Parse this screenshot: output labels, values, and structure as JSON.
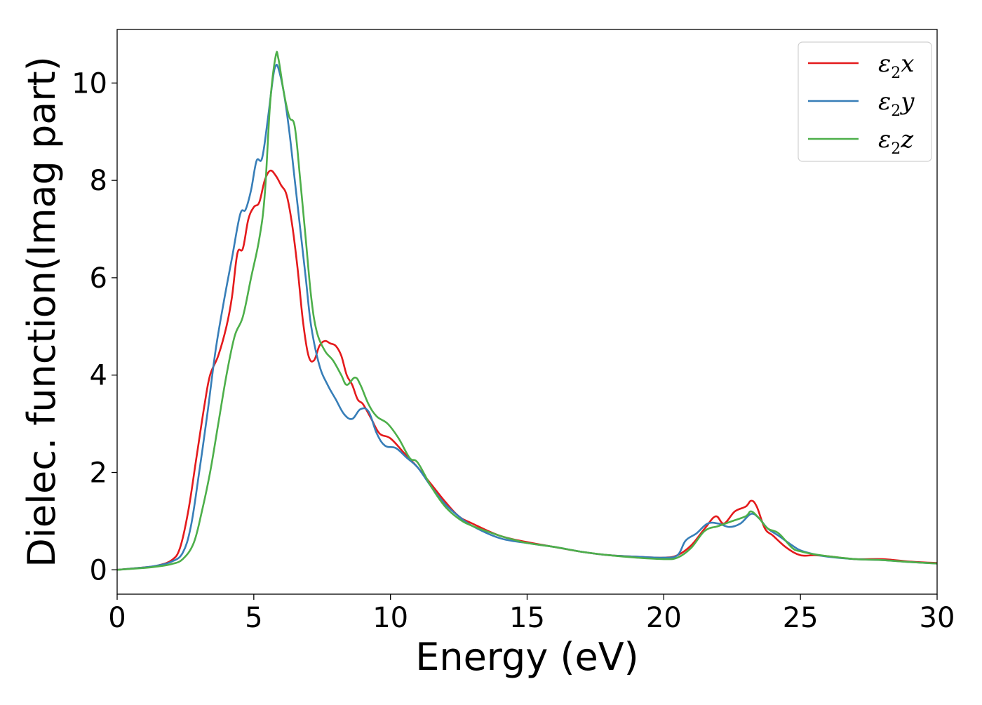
{
  "chart_data": {
    "type": "line",
    "xlabel": "Energy (eV)",
    "ylabel": "Dielec. function(Imag part)",
    "xlim": [
      0,
      30
    ],
    "ylim": [
      -0.5,
      11.1
    ],
    "xticks": [
      0,
      5,
      10,
      15,
      20,
      25,
      30
    ],
    "yticks": [
      0,
      2,
      4,
      6,
      8,
      10
    ],
    "grid": false,
    "legend_position": "top-right",
    "series": [
      {
        "name": "ε2x",
        "legend_base": "ε",
        "legend_sub": "2",
        "legend_var": "x",
        "color": "#e41a1c",
        "points": [
          [
            0,
            0
          ],
          [
            1,
            0.05
          ],
          [
            1.5,
            0.09
          ],
          [
            2,
            0.2
          ],
          [
            2.3,
            0.45
          ],
          [
            2.6,
            1.2
          ],
          [
            2.9,
            2.3
          ],
          [
            3.2,
            3.4
          ],
          [
            3.4,
            4.0
          ],
          [
            3.7,
            4.4
          ],
          [
            4.0,
            5.0
          ],
          [
            4.2,
            5.6
          ],
          [
            4.4,
            6.5
          ],
          [
            4.6,
            6.6
          ],
          [
            4.8,
            7.2
          ],
          [
            5.0,
            7.45
          ],
          [
            5.2,
            7.55
          ],
          [
            5.4,
            8.0
          ],
          [
            5.6,
            8.2
          ],
          [
            5.8,
            8.1
          ],
          [
            6.0,
            7.9
          ],
          [
            6.2,
            7.7
          ],
          [
            6.4,
            7.1
          ],
          [
            6.6,
            6.2
          ],
          [
            6.8,
            5.1
          ],
          [
            7.0,
            4.4
          ],
          [
            7.2,
            4.3
          ],
          [
            7.4,
            4.6
          ],
          [
            7.6,
            4.7
          ],
          [
            7.8,
            4.65
          ],
          [
            8.0,
            4.6
          ],
          [
            8.2,
            4.4
          ],
          [
            8.4,
            4.0
          ],
          [
            8.6,
            3.8
          ],
          [
            8.8,
            3.5
          ],
          [
            9.0,
            3.4
          ],
          [
            9.3,
            3.1
          ],
          [
            9.6,
            2.8
          ],
          [
            10.0,
            2.7
          ],
          [
            10.5,
            2.4
          ],
          [
            11.0,
            2.1
          ],
          [
            11.5,
            1.75
          ],
          [
            12.0,
            1.4
          ],
          [
            12.5,
            1.1
          ],
          [
            13.0,
            0.95
          ],
          [
            14.0,
            0.7
          ],
          [
            15.0,
            0.57
          ],
          [
            16.0,
            0.47
          ],
          [
            17.0,
            0.37
          ],
          [
            18.0,
            0.3
          ],
          [
            19.0,
            0.27
          ],
          [
            20.0,
            0.25
          ],
          [
            20.5,
            0.3
          ],
          [
            21.0,
            0.5
          ],
          [
            21.5,
            0.85
          ],
          [
            21.9,
            1.1
          ],
          [
            22.2,
            0.95
          ],
          [
            22.6,
            1.2
          ],
          [
            23.0,
            1.3
          ],
          [
            23.2,
            1.42
          ],
          [
            23.4,
            1.3
          ],
          [
            23.7,
            0.85
          ],
          [
            24.0,
            0.7
          ],
          [
            24.5,
            0.45
          ],
          [
            25.0,
            0.3
          ],
          [
            25.5,
            0.3
          ],
          [
            26.0,
            0.28
          ],
          [
            27.0,
            0.22
          ],
          [
            28.0,
            0.22
          ],
          [
            29.0,
            0.17
          ],
          [
            30.0,
            0.14
          ]
        ]
      },
      {
        "name": "ε2y",
        "legend_base": "ε",
        "legend_sub": "2",
        "legend_var": "y",
        "color": "#377eb8",
        "points": [
          [
            0,
            0
          ],
          [
            1,
            0.05
          ],
          [
            1.5,
            0.09
          ],
          [
            2,
            0.17
          ],
          [
            2.4,
            0.35
          ],
          [
            2.7,
            0.9
          ],
          [
            3.0,
            2.0
          ],
          [
            3.3,
            3.2
          ],
          [
            3.6,
            4.5
          ],
          [
            3.9,
            5.5
          ],
          [
            4.2,
            6.4
          ],
          [
            4.5,
            7.3
          ],
          [
            4.7,
            7.4
          ],
          [
            4.9,
            7.8
          ],
          [
            5.1,
            8.4
          ],
          [
            5.3,
            8.45
          ],
          [
            5.5,
            9.2
          ],
          [
            5.7,
            10.1
          ],
          [
            5.8,
            10.35
          ],
          [
            5.9,
            10.3
          ],
          [
            6.1,
            9.8
          ],
          [
            6.3,
            9.0
          ],
          [
            6.5,
            8.0
          ],
          [
            6.7,
            7.0
          ],
          [
            6.9,
            6.0
          ],
          [
            7.1,
            5.0
          ],
          [
            7.4,
            4.2
          ],
          [
            7.7,
            3.8
          ],
          [
            8.0,
            3.5
          ],
          [
            8.3,
            3.2
          ],
          [
            8.6,
            3.1
          ],
          [
            8.9,
            3.3
          ],
          [
            9.2,
            3.25
          ],
          [
            9.5,
            2.8
          ],
          [
            9.8,
            2.55
          ],
          [
            10.2,
            2.5
          ],
          [
            10.6,
            2.3
          ],
          [
            11.0,
            2.1
          ],
          [
            11.5,
            1.7
          ],
          [
            12.0,
            1.35
          ],
          [
            12.5,
            1.1
          ],
          [
            13.0,
            0.9
          ],
          [
            14.0,
            0.65
          ],
          [
            15.0,
            0.55
          ],
          [
            16.0,
            0.47
          ],
          [
            17.0,
            0.37
          ],
          [
            18.0,
            0.3
          ],
          [
            19.0,
            0.27
          ],
          [
            20.0,
            0.25
          ],
          [
            20.5,
            0.3
          ],
          [
            20.8,
            0.6
          ],
          [
            21.2,
            0.75
          ],
          [
            21.6,
            0.95
          ],
          [
            22.0,
            0.95
          ],
          [
            22.4,
            0.88
          ],
          [
            22.8,
            0.95
          ],
          [
            23.2,
            1.15
          ],
          [
            23.5,
            1.05
          ],
          [
            23.8,
            0.85
          ],
          [
            24.2,
            0.7
          ],
          [
            24.7,
            0.5
          ],
          [
            25.0,
            0.4
          ],
          [
            25.5,
            0.32
          ],
          [
            26.0,
            0.27
          ],
          [
            27.0,
            0.22
          ],
          [
            28.0,
            0.2
          ],
          [
            29.0,
            0.16
          ],
          [
            30.0,
            0.13
          ]
        ]
      },
      {
        "name": "ε2z",
        "legend_base": "ε",
        "legend_sub": "2",
        "legend_var": "z",
        "color": "#4daf4a",
        "points": [
          [
            0,
            0
          ],
          [
            1,
            0.04
          ],
          [
            1.5,
            0.07
          ],
          [
            2,
            0.12
          ],
          [
            2.4,
            0.22
          ],
          [
            2.8,
            0.55
          ],
          [
            3.1,
            1.2
          ],
          [
            3.4,
            2.0
          ],
          [
            3.7,
            3.0
          ],
          [
            4.0,
            4.0
          ],
          [
            4.3,
            4.8
          ],
          [
            4.6,
            5.2
          ],
          [
            4.9,
            6.0
          ],
          [
            5.2,
            6.8
          ],
          [
            5.4,
            7.7
          ],
          [
            5.6,
            9.6
          ],
          [
            5.8,
            10.55
          ],
          [
            5.9,
            10.5
          ],
          [
            6.1,
            9.8
          ],
          [
            6.3,
            9.3
          ],
          [
            6.5,
            9.1
          ],
          [
            6.7,
            8.0
          ],
          [
            6.9,
            6.8
          ],
          [
            7.1,
            5.6
          ],
          [
            7.3,
            4.9
          ],
          [
            7.6,
            4.5
          ],
          [
            7.9,
            4.3
          ],
          [
            8.2,
            4.0
          ],
          [
            8.4,
            3.8
          ],
          [
            8.7,
            3.95
          ],
          [
            8.9,
            3.8
          ],
          [
            9.2,
            3.4
          ],
          [
            9.5,
            3.15
          ],
          [
            9.9,
            3.0
          ],
          [
            10.3,
            2.7
          ],
          [
            10.7,
            2.3
          ],
          [
            11.0,
            2.2
          ],
          [
            11.5,
            1.7
          ],
          [
            12.0,
            1.3
          ],
          [
            12.5,
            1.05
          ],
          [
            13.0,
            0.9
          ],
          [
            14.0,
            0.7
          ],
          [
            14.5,
            0.62
          ],
          [
            15.0,
            0.55
          ],
          [
            16.0,
            0.47
          ],
          [
            17.0,
            0.37
          ],
          [
            18.0,
            0.3
          ],
          [
            19.0,
            0.25
          ],
          [
            20.0,
            0.22
          ],
          [
            20.5,
            0.25
          ],
          [
            21.0,
            0.45
          ],
          [
            21.5,
            0.8
          ],
          [
            22.0,
            0.9
          ],
          [
            22.5,
            1.0
          ],
          [
            23.0,
            1.1
          ],
          [
            23.2,
            1.2
          ],
          [
            23.5,
            1.05
          ],
          [
            23.8,
            0.85
          ],
          [
            24.2,
            0.75
          ],
          [
            24.7,
            0.45
          ],
          [
            25.0,
            0.38
          ],
          [
            25.5,
            0.32
          ],
          [
            26.0,
            0.28
          ],
          [
            27.0,
            0.22
          ],
          [
            28.0,
            0.2
          ],
          [
            29.0,
            0.16
          ],
          [
            30.0,
            0.13
          ]
        ]
      }
    ]
  }
}
